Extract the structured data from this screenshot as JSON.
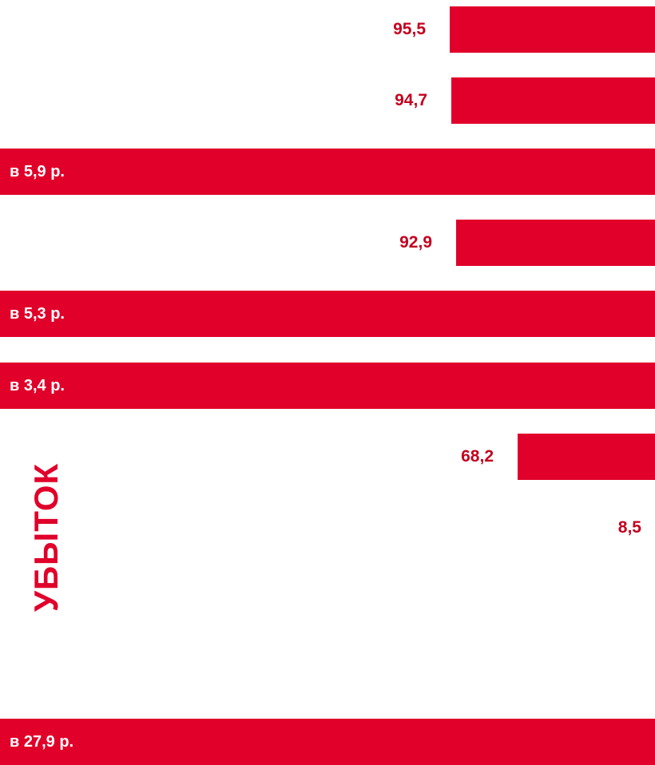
{
  "colors": {
    "bar": "#e0002a",
    "value_text": "#c3001f",
    "label_text": "#ffffff"
  },
  "side_label": "УБЫТОК",
  "chart_data": {
    "type": "bar",
    "orientation": "horizontal",
    "bar_anchor": "right",
    "xlim": [
      0,
      100
    ],
    "series": [
      {
        "values": [
          95.5,
          94.7,
          null,
          92.9,
          null,
          null,
          68.2,
          8.5,
          null,
          null
        ],
        "labels": [
          "95,5",
          "94,7",
          "в 5,9 р.",
          "92,9",
          "в 5,3 р.",
          "в 3,4 р.",
          "68,2",
          "8,5",
          "",
          "в 27,9 р."
        ]
      }
    ]
  }
}
